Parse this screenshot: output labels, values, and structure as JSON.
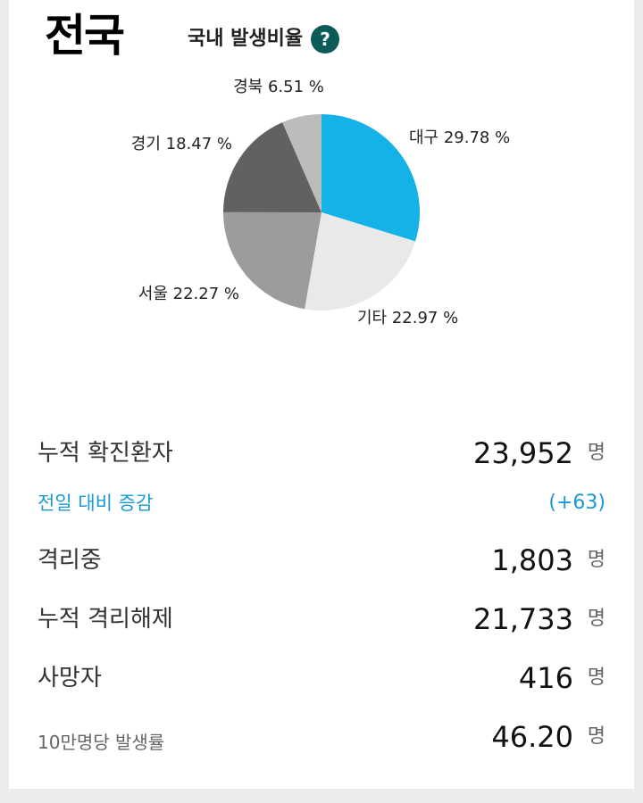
{
  "header": {
    "region_title": "전국",
    "subtitle": "국내 발생비율",
    "help_symbol": "?"
  },
  "colors": {
    "accent_blue": "#14b2e6",
    "help_bg": "#0b5c58",
    "delta_text": "#1a9ad0"
  },
  "chart_data": {
    "type": "pie",
    "title": "",
    "slices": [
      {
        "name": "대구",
        "value": 29.78,
        "label": "대구 29.78 %",
        "color": "#14b2e6"
      },
      {
        "name": "기타",
        "value": 22.97,
        "label": "기타 22.97 %",
        "color": "#e8e9e8"
      },
      {
        "name": "서울",
        "value": 22.27,
        "label": "서울 22.27 %",
        "color": "#9c9c9c"
      },
      {
        "name": "경기",
        "value": 18.47,
        "label": "경기 18.47 %",
        "color": "#616161"
      },
      {
        "name": "경북",
        "value": 6.51,
        "label": "경북 6.51 %",
        "color": "#bcbcbc"
      }
    ]
  },
  "stats": {
    "confirmed": {
      "label": "누적 확진환자",
      "value": "23,952",
      "unit": "명"
    },
    "delta": {
      "label": "전일 대비 증감",
      "value": "(+63)"
    },
    "isolating": {
      "label": "격리중",
      "value": "1,803",
      "unit": "명"
    },
    "released": {
      "label": "누적 격리해제",
      "value": "21,733",
      "unit": "명"
    },
    "deaths": {
      "label": "사망자",
      "value": "416",
      "unit": "명"
    },
    "rate": {
      "label": "10만명당 발생률",
      "value": "46.20",
      "unit": "명"
    }
  }
}
